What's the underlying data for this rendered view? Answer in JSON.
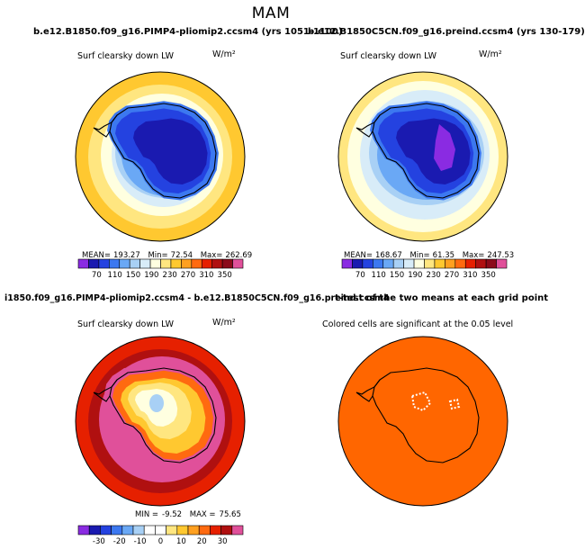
{
  "page": {
    "title": "MAM"
  },
  "chart_data": [
    {
      "type": "heatmap",
      "projection": "south-polar-stereographic",
      "title": "b.e12.B1850.f09_g16.PIMP4-pliomip2.ccsm4 (yrs 1051-1100)",
      "variable": "Surf clearsky down LW",
      "units": "W/m²",
      "stats": {
        "mean_label": "MEAN=",
        "mean": "193.27",
        "min_label": "Min=",
        "min": "72.54",
        "max_label": "Max=",
        "max": "262.69"
      },
      "colorbar": {
        "ticks": [
          "70",
          "110",
          "150",
          "190",
          "230",
          "270",
          "310",
          "350"
        ],
        "colors": [
          "#8a2be2",
          "#1a1ab0",
          "#2442e0",
          "#3c78f0",
          "#6aa8f5",
          "#a8d0f5",
          "#d8ecf8",
          "#ffffe0",
          "#ffe680",
          "#ffc830",
          "#ffa020",
          "#ff6a10",
          "#e62000",
          "#b01010",
          "#8b0a1a",
          "#e0509a"
        ]
      }
    },
    {
      "type": "heatmap",
      "projection": "south-polar-stereographic",
      "title": "b.e12.B1850C5CN.f09_g16.preind.ccsm4 (yrs 130-179)",
      "variable": "Surf clearsky down LW",
      "units": "W/m²",
      "stats": {
        "mean_label": "MEAN=",
        "mean": "168.67",
        "min_label": "Min=",
        "min": "61.35",
        "max_label": "Max=",
        "max": "247.53"
      },
      "colorbar": {
        "ticks": [
          "70",
          "110",
          "150",
          "190",
          "230",
          "270",
          "310",
          "350"
        ],
        "colors": [
          "#8a2be2",
          "#1a1ab0",
          "#2442e0",
          "#3c78f0",
          "#6aa8f5",
          "#a8d0f5",
          "#d8ecf8",
          "#ffffe0",
          "#ffe680",
          "#ffc830",
          "#ffa020",
          "#ff6a10",
          "#e62000",
          "#b01010",
          "#8b0a1a",
          "#e0509a"
        ]
      }
    },
    {
      "type": "heatmap",
      "projection": "south-polar-stereographic",
      "title": "i1850.f09_g16.PIMP4-pliomip2.ccsm4 - b.e12.B1850C5CN.f09_g16.preind.ccsm4",
      "variable": "Surf clearsky down LW",
      "units": "W/m²",
      "stats": {
        "min_label": "MIN =",
        "min": "-9.52",
        "max_label": "MAX =",
        "max": "75.65"
      },
      "colorbar": {
        "ticks": [
          "-30",
          "-20",
          "-10",
          "0",
          "10",
          "20",
          "30"
        ],
        "colors": [
          "#8a2be2",
          "#1a1ab0",
          "#2442e0",
          "#3c78f0",
          "#6aa8f5",
          "#a8d0f5",
          "#ffffff",
          "#ffffff",
          "#ffe680",
          "#ffc830",
          "#ffa020",
          "#ff6a10",
          "#e62000",
          "#b01010",
          "#e0509a"
        ]
      }
    },
    {
      "type": "heatmap",
      "projection": "south-polar-stereographic",
      "title": "t-test of the two means at each grid point",
      "subtitle": "Colored cells are significant at the 0.05 level",
      "fill_color": "#ff6600"
    }
  ]
}
